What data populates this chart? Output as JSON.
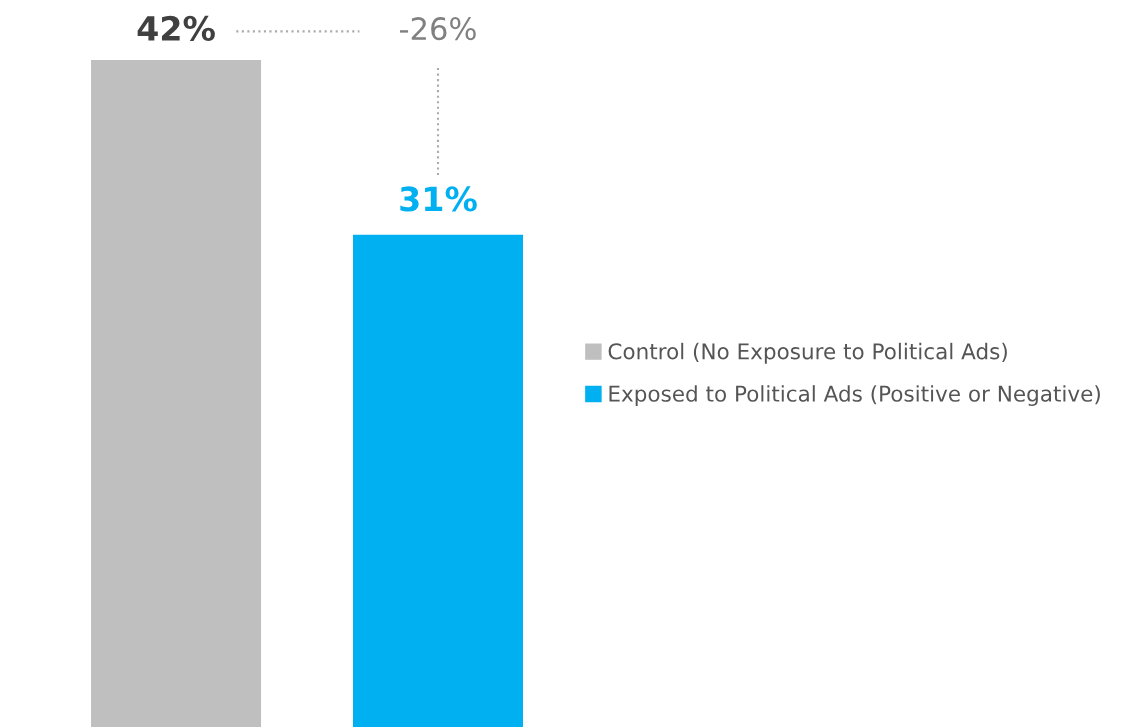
{
  "chart_data": {
    "type": "bar",
    "categories": [
      null
    ],
    "series": [
      {
        "name": "Control (No Exposure to Political Ads)",
        "color": "#bfbfbf",
        "values": [
          42
        ],
        "value_labels": [
          "42%"
        ]
      },
      {
        "name": "Exposed to Political Ads (Positive or Negative)",
        "color": "#00b0f0",
        "values": [
          31
        ],
        "value_labels": [
          "31%"
        ]
      }
    ],
    "annotations": [
      "-26%"
    ],
    "legend": "right",
    "grid": false
  }
}
